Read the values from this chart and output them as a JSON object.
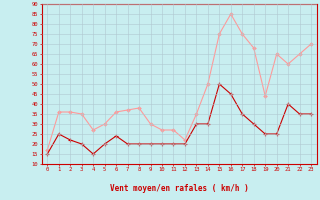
{
  "hours": [
    0,
    1,
    2,
    3,
    4,
    5,
    6,
    7,
    8,
    9,
    10,
    11,
    12,
    13,
    14,
    15,
    16,
    17,
    18,
    19,
    20,
    21,
    22,
    23
  ],
  "wind_avg": [
    15,
    25,
    22,
    20,
    15,
    20,
    24,
    20,
    20,
    20,
    20,
    20,
    20,
    30,
    30,
    50,
    45,
    35,
    30,
    25,
    25,
    40,
    35,
    35
  ],
  "wind_gust": [
    17,
    36,
    36,
    35,
    27,
    30,
    36,
    37,
    38,
    30,
    27,
    27,
    22,
    35,
    50,
    75,
    85,
    75,
    68,
    44,
    65,
    60,
    65,
    70
  ],
  "avg_color": "#cc0000",
  "gust_color": "#ff9999",
  "bg_color": "#c8eef0",
  "grid_color": "#b0c8d0",
  "xlabel": "Vent moyen/en rafales ( km/h )",
  "xlabel_color": "#cc0000",
  "ylim": [
    10,
    90
  ],
  "yticks": [
    10,
    15,
    20,
    25,
    30,
    35,
    40,
    45,
    50,
    55,
    60,
    65,
    70,
    75,
    80,
    85,
    90
  ],
  "xtick_labels": [
    "0",
    "1",
    "2",
    "3",
    "4",
    "5",
    "6",
    "7",
    "8",
    "9",
    "10",
    "11",
    "12",
    "13",
    "14",
    "15",
    "16",
    "17",
    "18",
    "19",
    "20",
    "21",
    "22",
    "23"
  ]
}
